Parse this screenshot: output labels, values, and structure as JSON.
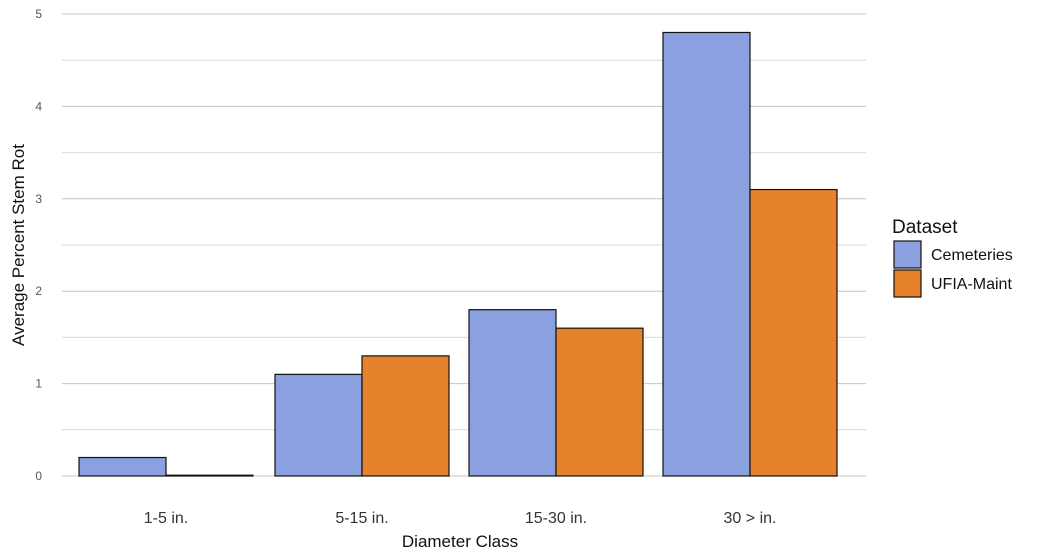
{
  "chart_data": {
    "type": "bar",
    "categories": [
      "1-5 in.",
      "5-15 in.",
      "15-30 in.",
      "30 > in."
    ],
    "series": [
      {
        "name": "Cemeteries",
        "values": [
          0.2,
          1.1,
          1.8,
          4.8
        ],
        "color": "#8ba0de"
      },
      {
        "name": "UFIA-Maint",
        "values": [
          0.0,
          1.3,
          1.6,
          3.1
        ],
        "color": "#e5822b"
      }
    ],
    "xlabel": "Diameter Class",
    "ylabel": "Average Percent Stem Rot",
    "ylim": [
      0,
      5
    ],
    "yticks": [
      0,
      1,
      2,
      3,
      4,
      5
    ],
    "grid": true,
    "legend": {
      "title": "Dataset",
      "position": "right"
    }
  }
}
